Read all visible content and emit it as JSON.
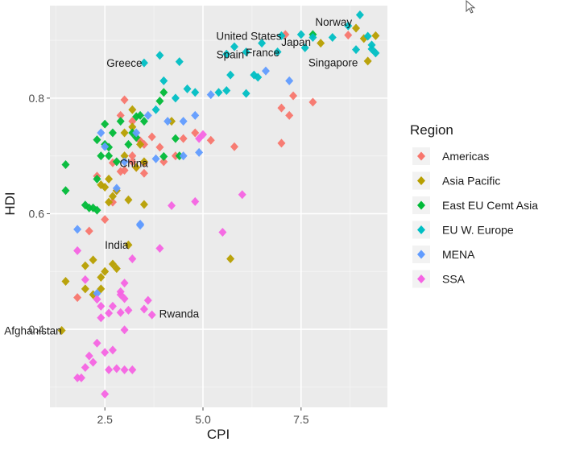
{
  "chart_data": {
    "type": "scatter",
    "xlabel": "CPI",
    "ylabel": "HDI",
    "xlim": [
      1.1,
      9.7
    ],
    "ylim": [
      0.265,
      0.96
    ],
    "x_ticks": [
      "2.5",
      "5.0",
      "7.5"
    ],
    "x_tick_values": [
      2.5,
      5.0,
      7.5
    ],
    "y_ticks": [
      "0.4",
      "0.6",
      "0.8"
    ],
    "y_tick_values": [
      0.4,
      0.6,
      0.8
    ],
    "grid": true,
    "legend": {
      "title": "Region",
      "placement": "right",
      "entries": [
        "Americas",
        "Asia Pacific",
        "East EU Cemt Asia",
        "EU W. Europe",
        "MENA",
        "SSA"
      ]
    },
    "colors": {
      "Americas": "#F8766D",
      "Asia Pacific": "#B79F00",
      "East EU Cemt Asia": "#00BA38",
      "EU W. Europe": "#00BFC4",
      "MENA": "#619CFF",
      "SSA": "#F564E3"
    },
    "annotations": [
      {
        "text": "Norway",
        "x": 8.8,
        "y": 0.932
      },
      {
        "text": "United States",
        "x": 7.0,
        "y": 0.908
      },
      {
        "text": "Japan",
        "x": 7.75,
        "y": 0.897
      },
      {
        "text": "Spain",
        "x": 6.05,
        "y": 0.876
      },
      {
        "text": "France",
        "x": 6.95,
        "y": 0.879
      },
      {
        "text": "Singapore",
        "x": 8.95,
        "y": 0.862
      },
      {
        "text": "Greece",
        "x": 3.45,
        "y": 0.861
      },
      {
        "text": "China",
        "x": 3.6,
        "y": 0.688
      },
      {
        "text": "India",
        "x": 3.1,
        "y": 0.546
      },
      {
        "text": "Rwanda",
        "x": 4.9,
        "y": 0.427
      },
      {
        "text": "Afghanistan",
        "x": 1.4,
        "y": 0.398
      }
    ],
    "series": [
      {
        "name": "Americas",
        "x": [
          7.1,
          7.8,
          7.3,
          7.0,
          7.2,
          7.0,
          8.7,
          3.0,
          3.2,
          2.9,
          3.4,
          3.5,
          3.2,
          3.7,
          3.9,
          3.2,
          4.3,
          4.5,
          5.2,
          5.8,
          3.5,
          3.3,
          2.9,
          2.7,
          3.0,
          2.3,
          2.8,
          2.7,
          2.5,
          2.1,
          1.8,
          3.5,
          4.0,
          4.8
        ],
        "y": [
          0.91,
          0.793,
          0.804,
          0.783,
          0.77,
          0.722,
          0.909,
          0.797,
          0.76,
          0.77,
          0.726,
          0.72,
          0.7,
          0.733,
          0.715,
          0.69,
          0.7,
          0.73,
          0.727,
          0.716,
          0.688,
          0.68,
          0.673,
          0.688,
          0.675,
          0.665,
          0.64,
          0.62,
          0.59,
          0.57,
          0.455,
          0.67,
          0.69,
          0.74
        ]
      },
      {
        "name": "Asia Pacific",
        "x": [
          9.4,
          9.2,
          8.0,
          8.9,
          9.1,
          3.5,
          3.3,
          3.0,
          3.5,
          2.6,
          2.8,
          2.5,
          2.7,
          2.6,
          3.1,
          3.1,
          2.2,
          2.0,
          2.5,
          2.7,
          2.8,
          2.4,
          2.4,
          2.2,
          1.5,
          1.4,
          3.2,
          5.7,
          3.0,
          3.2,
          3.4,
          4.2,
          2.4,
          2.0
        ],
        "y": [
          0.908,
          0.864,
          0.895,
          0.921,
          0.903,
          0.69,
          0.68,
          0.7,
          0.616,
          0.66,
          0.64,
          0.646,
          0.63,
          0.62,
          0.624,
          0.546,
          0.52,
          0.51,
          0.5,
          0.513,
          0.505,
          0.49,
          0.47,
          0.46,
          0.483,
          0.398,
          0.78,
          0.522,
          0.74,
          0.75,
          0.72,
          0.76,
          0.65,
          0.47
        ]
      },
      {
        "name": "East EU Cemt Asia",
        "x": [
          1.5,
          1.5,
          2.1,
          2.3,
          2.5,
          2.0,
          2.2,
          2.4,
          2.3,
          2.5,
          2.7,
          2.9,
          3.2,
          3.3,
          3.1,
          2.6,
          2.8,
          3.4,
          3.5,
          3.9,
          4.0,
          4.3,
          4.4,
          4.0,
          3.3,
          2.3,
          2.6,
          7.8
        ],
        "y": [
          0.685,
          0.64,
          0.61,
          0.66,
          0.755,
          0.615,
          0.61,
          0.7,
          0.728,
          0.72,
          0.74,
          0.76,
          0.74,
          0.732,
          0.72,
          0.715,
          0.69,
          0.77,
          0.76,
          0.795,
          0.81,
          0.73,
          0.7,
          0.699,
          0.768,
          0.606,
          0.7,
          0.91
        ]
      },
      {
        "name": "EU W. Europe",
        "x": [
          9.0,
          8.7,
          8.3,
          9.2,
          9.3,
          9.4,
          8.9,
          7.8,
          7.5,
          7.6,
          7.0,
          6.9,
          6.5,
          6.3,
          6.1,
          5.8,
          5.6,
          5.7,
          5.4,
          5.6,
          4.8,
          4.6,
          4.3,
          4.0,
          3.8,
          3.5,
          3.9,
          4.4,
          6.1,
          6.4,
          9.3
        ],
        "y": [
          0.944,
          0.925,
          0.905,
          0.907,
          0.892,
          0.878,
          0.884,
          0.905,
          0.91,
          0.887,
          0.908,
          0.88,
          0.895,
          0.84,
          0.88,
          0.889,
          0.876,
          0.84,
          0.81,
          0.813,
          0.81,
          0.816,
          0.8,
          0.83,
          0.78,
          0.861,
          0.874,
          0.863,
          0.808,
          0.836,
          0.885
        ]
      },
      {
        "name": "MENA",
        "x": [
          7.2,
          6.6,
          5.2,
          4.8,
          4.5,
          4.9,
          4.5,
          4.1,
          3.6,
          3.8,
          3.3,
          3.0,
          2.5,
          2.4,
          2.8,
          1.8,
          2.3,
          3.4,
          3.4
        ],
        "y": [
          0.83,
          0.847,
          0.806,
          0.77,
          0.76,
          0.706,
          0.7,
          0.76,
          0.77,
          0.695,
          0.74,
          0.69,
          0.716,
          0.74,
          0.644,
          0.573,
          0.462,
          0.58,
          0.582
        ]
      },
      {
        "name": "SSA",
        "x": [
          5.0,
          4.9,
          5.5,
          6.0,
          4.8,
          4.2,
          3.9,
          3.6,
          3.7,
          3.5,
          3.2,
          3.0,
          3.0,
          3.1,
          2.9,
          3.0,
          2.9,
          2.6,
          2.4,
          2.4,
          2.3,
          2.0,
          1.8,
          1.8,
          2.0,
          2.2,
          2.1,
          2.3,
          2.5,
          2.7,
          2.6,
          2.8,
          3.0,
          3.2,
          1.9,
          2.5,
          2.7,
          2.9
        ],
        "y": [
          0.737,
          0.73,
          0.568,
          0.633,
          0.621,
          0.614,
          0.54,
          0.45,
          0.425,
          0.435,
          0.522,
          0.48,
          0.453,
          0.433,
          0.429,
          0.399,
          0.465,
          0.428,
          0.42,
          0.44,
          0.452,
          0.486,
          0.536,
          0.316,
          0.334,
          0.343,
          0.354,
          0.376,
          0.36,
          0.364,
          0.33,
          0.332,
          0.33,
          0.33,
          0.316,
          0.288,
          0.44,
          0.46
        ]
      }
    ]
  }
}
